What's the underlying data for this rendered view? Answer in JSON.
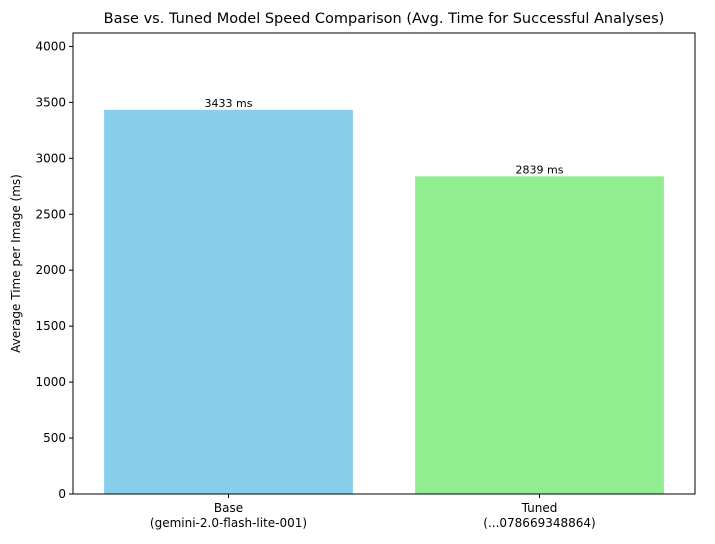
{
  "chart_data": {
    "type": "bar",
    "title": "Base vs. Tuned Model Speed Comparison (Avg. Time for Successful Analyses)",
    "xlabel": "",
    "ylabel": "Average Time per Image (ms)",
    "ylim": [
      0,
      4120
    ],
    "yticks": [
      0,
      500,
      1000,
      1500,
      2000,
      2500,
      3000,
      3500,
      4000
    ],
    "grid": false,
    "categories": [
      {
        "line1": "Base",
        "line2": "(gemini-2.0-flash-lite-001)"
      },
      {
        "line1": "Tuned",
        "line2": "(...078669348864)"
      }
    ],
    "values": [
      3433,
      2839
    ],
    "data_labels": [
      "3433 ms",
      "2839 ms"
    ],
    "colors": [
      "#87ceeb",
      "#90ee90"
    ]
  }
}
